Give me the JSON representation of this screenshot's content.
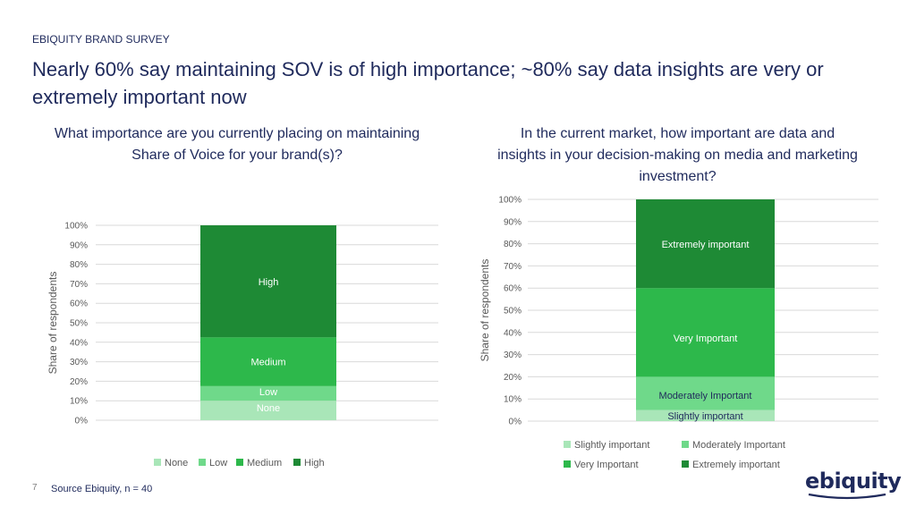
{
  "header": {
    "kicker": "EBIQUITY BRAND SURVEY",
    "headline": "Nearly 60% say maintaining SOV is of high importance; ~80% say data insights are very or extremely important now"
  },
  "footer": {
    "page_number": "7",
    "source": "Source Ebiquity, n = 40",
    "logo_text": "ebiquity"
  },
  "chart_data": [
    {
      "type": "bar",
      "stacked": true,
      "title": "What importance are you currently placing on maintaining Share of Voice for your brand(s)?",
      "ylabel": "Share of respondents",
      "xlabel": "",
      "ylim": [
        0,
        100
      ],
      "yticks": [
        "0%",
        "10%",
        "20%",
        "30%",
        "40%",
        "50%",
        "60%",
        "70%",
        "80%",
        "90%",
        "100%"
      ],
      "grid": true,
      "legend_position": "bottom",
      "series": [
        {
          "name": "None",
          "value": 10,
          "color": "#a9e6b8"
        },
        {
          "name": "Low",
          "value": 7.5,
          "color": "#6fd98a"
        },
        {
          "name": "Medium",
          "value": 25,
          "color": "#2db84b"
        },
        {
          "name": "High",
          "value": 57.5,
          "color": "#1e8a35"
        }
      ]
    },
    {
      "type": "bar",
      "stacked": true,
      "title": "In the current market, how important are data and insights in your decision-making on media and marketing investment?",
      "ylabel": "Share of respondents",
      "xlabel": "",
      "ylim": [
        0,
        100
      ],
      "yticks": [
        "0%",
        "10%",
        "20%",
        "30%",
        "40%",
        "50%",
        "60%",
        "70%",
        "80%",
        "90%",
        "100%"
      ],
      "grid": true,
      "legend_position": "bottom",
      "series": [
        {
          "name": "Slightly important",
          "value": 5,
          "color": "#a9e6b8"
        },
        {
          "name": "Moderately Important",
          "value": 15,
          "color": "#6fd98a"
        },
        {
          "name": "Very Important",
          "value": 40,
          "color": "#2db84b"
        },
        {
          "name": "Extremely important",
          "value": 40,
          "color": "#1e8a35"
        }
      ]
    }
  ]
}
